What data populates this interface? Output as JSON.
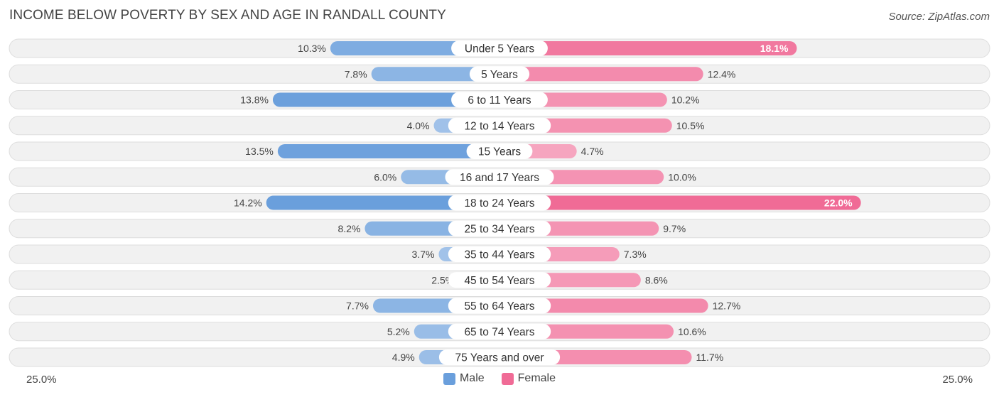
{
  "chart_data": {
    "type": "bar",
    "orientation": "horizontal-diverging",
    "title": "INCOME BELOW POVERTY BY SEX AND AGE IN RANDALL COUNTY",
    "source": "Source: ZipAtlas.com",
    "categories": [
      "Under 5 Years",
      "5 Years",
      "6 to 11 Years",
      "12 to 14 Years",
      "15 Years",
      "16 and 17 Years",
      "18 to 24 Years",
      "25 to 34 Years",
      "35 to 44 Years",
      "45 to 54 Years",
      "55 to 64 Years",
      "65 to 74 Years",
      "75 Years and over"
    ],
    "series": [
      {
        "name": "Male",
        "color": "#6a9fdc",
        "values": [
          10.3,
          7.8,
          13.8,
          4.0,
          13.5,
          6.0,
          14.2,
          8.2,
          3.7,
          2.5,
          7.7,
          5.2,
          4.9
        ]
      },
      {
        "name": "Female",
        "color": "#f06b96",
        "values": [
          18.1,
          12.4,
          10.2,
          10.5,
          4.7,
          10.0,
          22.0,
          9.7,
          7.3,
          8.6,
          12.7,
          10.6,
          11.7
        ]
      }
    ],
    "value_labels": {
      "Male": [
        "10.3%",
        "7.8%",
        "13.8%",
        "4.0%",
        "13.5%",
        "6.0%",
        "14.2%",
        "8.2%",
        "3.7%",
        "2.5%",
        "7.7%",
        "5.2%",
        "4.9%"
      ],
      "Female": [
        "18.1%",
        "12.4%",
        "10.2%",
        "10.5%",
        "4.7%",
        "10.0%",
        "22.0%",
        "9.7%",
        "7.3%",
        "8.6%",
        "12.7%",
        "10.6%",
        "11.7%"
      ]
    },
    "xlim": [
      -25.0,
      25.0
    ],
    "axis_labels": {
      "left": "25.0%",
      "right": "25.0%"
    },
    "legend": [
      "Male",
      "Female"
    ],
    "legend_position": "bottom-center"
  }
}
